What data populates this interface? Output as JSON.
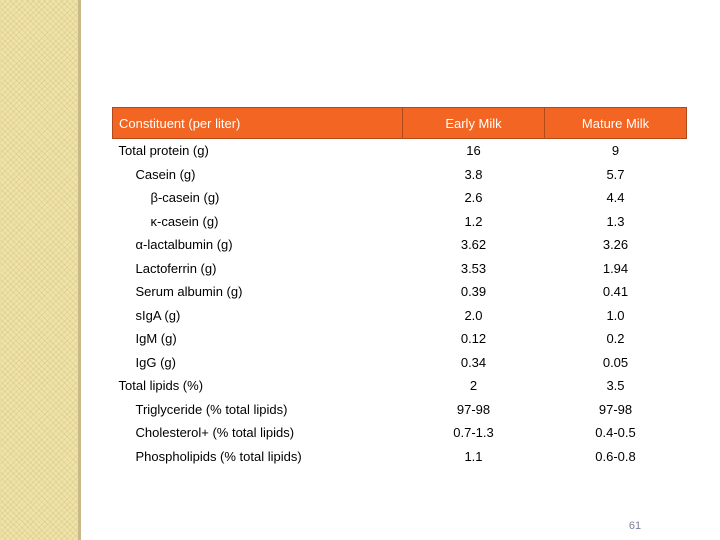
{
  "table": {
    "headers": [
      "Constituent (per liter)",
      "Early Milk",
      "Mature Milk"
    ],
    "rows": [
      {
        "label": "Total protein (g)",
        "early": "16",
        "mature": "9",
        "level": 0
      },
      {
        "label": "Casein (g)",
        "early": "3.8",
        "mature": "5.7",
        "level": 1
      },
      {
        "label": "β-casein (g)",
        "early": "2.6",
        "mature": "4.4",
        "level": 2
      },
      {
        "label": "κ-casein (g)",
        "early": "1.2",
        "mature": "1.3",
        "level": 2
      },
      {
        "label": "α-lactalbumin (g)",
        "early": "3.62",
        "mature": "3.26",
        "level": 1
      },
      {
        "label": "Lactoferrin (g)",
        "early": "3.53",
        "mature": "1.94",
        "level": 1
      },
      {
        "label": "Serum albumin (g)",
        "early": "0.39",
        "mature": "0.41",
        "level": 1
      },
      {
        "label": "sIgA (g)",
        "early": "2.0",
        "mature": "1.0",
        "level": 1
      },
      {
        "label": "IgM (g)",
        "early": "0.12",
        "mature": "0.2",
        "level": 1
      },
      {
        "label": "IgG (g)",
        "early": "0.34",
        "mature": "0.05",
        "level": 1
      },
      {
        "label": "Total lipids (%)",
        "early": "2",
        "mature": "3.5",
        "level": 0
      },
      {
        "label": "Triglyceride (% total lipids)",
        "early": "97-98",
        "mature": "97-98",
        "level": 1
      },
      {
        "label": "Cholesterol+ (% total lipids)",
        "early": "0.7-1.3",
        "mature": "0.4-0.5",
        "level": 1
      },
      {
        "label": "Phospholipids (% total lipids)",
        "early": "1.1",
        "mature": "0.6-0.8",
        "level": 1
      }
    ]
  },
  "page_number": "61",
  "colors": {
    "header_bg": "#f26522",
    "header_text": "#ffffff",
    "sidebar": "#f0e3a8",
    "page_number": "#7f7f9a"
  }
}
